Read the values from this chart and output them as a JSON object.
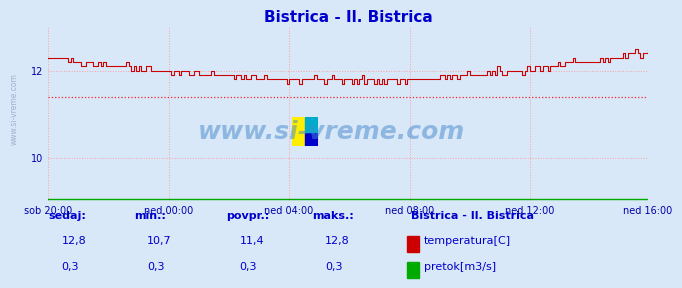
{
  "title": "Bistrica - Il. Bistrica",
  "title_color": "#0000cc",
  "bg_color": "#d8e8f8",
  "plot_bg_color": "#d8e8f8",
  "grid_color": "#ff9999",
  "grid_linestyle": "dotted",
  "x_tick_labels": [
    "sob 20:00",
    "ned 00:00",
    "ned 04:00",
    "ned 08:00",
    "ned 12:00",
    "ned 16:00"
  ],
  "x_tick_positions": [
    0,
    48,
    96,
    144,
    192,
    239
  ],
  "y_ticks": [
    10,
    12
  ],
  "ylim": [
    9.0,
    13.0
  ],
  "xlim": [
    0,
    239
  ],
  "temp_color": "#cc0000",
  "flow_color": "#00aa00",
  "avg_line_color": "#ff0000",
  "avg_line_style": "dotted",
  "avg_value": 11.4,
  "watermark_text": "www.si-vreme.com",
  "watermark_color": "#4488cc",
  "watermark_alpha": 0.45,
  "footer_label_color": "#0000cc",
  "footer_value_color": "#0000cc",
  "sedaj_label": "sedaj:",
  "min_label": "min.:",
  "povpr_label": "povpr.:",
  "maks_label": "maks.:",
  "sedaj_temp": "12,8",
  "min_temp": "10,7",
  "povpr_temp": "11,4",
  "maks_temp": "12,8",
  "sedaj_flow": "0,3",
  "min_flow": "0,3",
  "povpr_flow": "0,3",
  "maks_flow": "0,3",
  "legend_title": "Bistrica - Il. Bistrica",
  "legend_temp_label": "temperatura[C]",
  "legend_flow_label": "pretok[m3/s]"
}
